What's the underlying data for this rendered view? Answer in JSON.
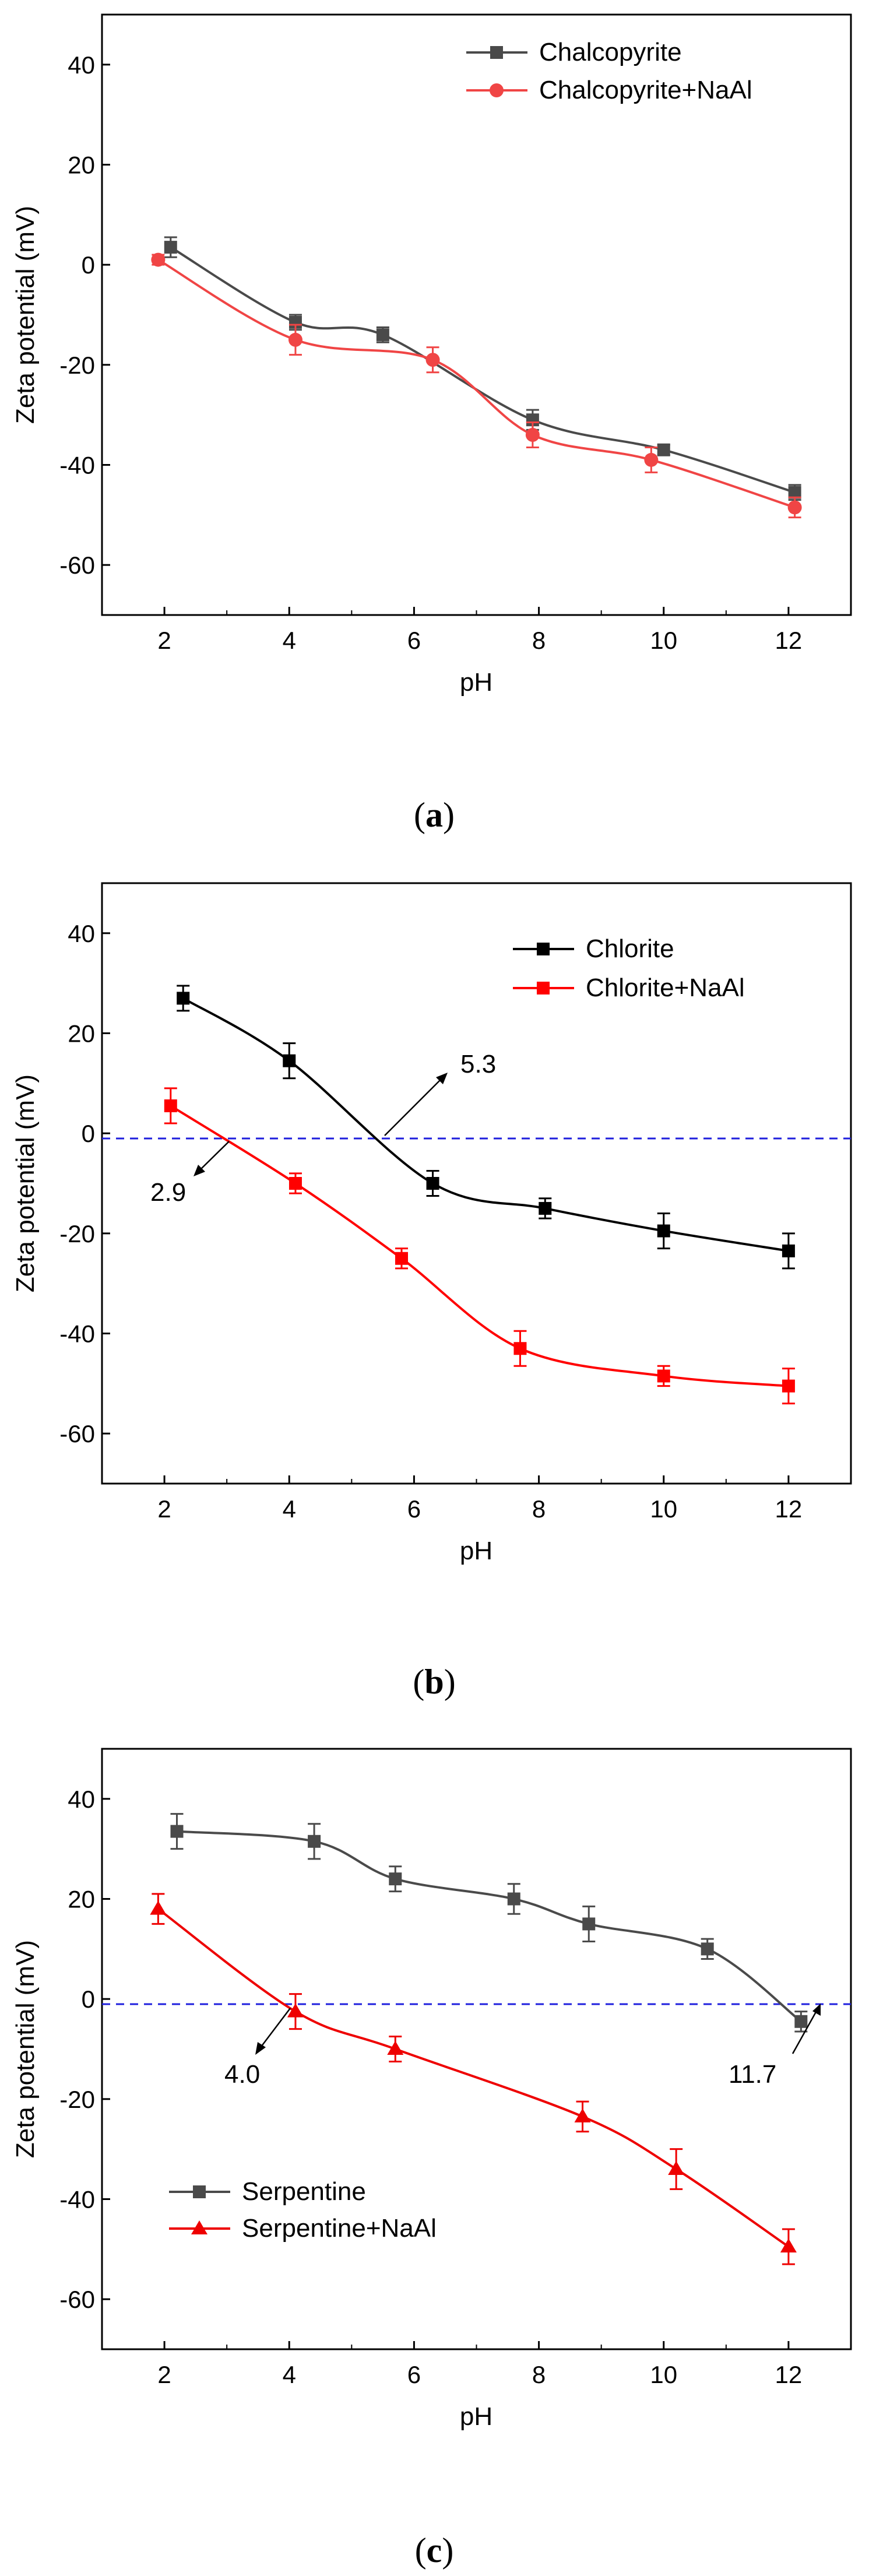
{
  "chart_data": [
    {
      "type": "line",
      "panel_label": "a",
      "xlabel": "pH",
      "ylabel": "Zeta potential (mV)",
      "xlim": [
        1,
        13
      ],
      "ylim": [
        -70,
        50
      ],
      "xticks": [
        "2",
        "4",
        "6",
        "8",
        "10",
        "12"
      ],
      "yticks": [
        "40",
        "20",
        "0",
        "-20",
        "-40",
        "-60"
      ],
      "legend_position": "top-right",
      "series": [
        {
          "name": "Chalcopyrite",
          "color": "#4a4a4a",
          "marker": "square",
          "x": [
            2.1,
            4.1,
            5.5,
            7.9,
            10.0,
            12.1
          ],
          "y": [
            3.5,
            -11.5,
            -14.0,
            -31.0,
            -37.0,
            -45.5
          ],
          "err": [
            2.0,
            1.5,
            1.5,
            2.0,
            1.0,
            1.5
          ]
        },
        {
          "name": "Chalcopyrite+NaAl",
          "color": "#f04545",
          "marker": "circle",
          "x": [
            1.9,
            4.1,
            6.3,
            7.9,
            9.8,
            12.1
          ],
          "y": [
            1.0,
            -15.0,
            -19.0,
            -34.0,
            -39.0,
            -48.5
          ],
          "err": [
            1.0,
            3.0,
            2.5,
            2.5,
            2.5,
            2.0
          ]
        }
      ]
    },
    {
      "type": "line",
      "panel_label": "b",
      "xlabel": "pH",
      "ylabel": "Zeta potential (mV)",
      "xlim": [
        1,
        13
      ],
      "ylim": [
        -70,
        50
      ],
      "xticks": [
        "2",
        "4",
        "6",
        "8",
        "10",
        "12"
      ],
      "yticks": [
        "40",
        "20",
        "0",
        "-20",
        "-40",
        "-60"
      ],
      "legend_position": "top-right",
      "reference_line": 0,
      "series": [
        {
          "name": "Chlorite",
          "color": "#000000",
          "marker": "square",
          "x": [
            2.3,
            4.0,
            6.3,
            8.1,
            10.0,
            12.0
          ],
          "y": [
            27.0,
            14.5,
            -10.0,
            -15.0,
            -19.5,
            -23.5
          ],
          "err": [
            2.5,
            3.5,
            2.5,
            2.0,
            3.5,
            3.5
          ]
        },
        {
          "name": "Chlorite+NaAl",
          "color": "#ff0000",
          "marker": "square",
          "x": [
            2.1,
            4.1,
            5.8,
            7.7,
            10.0,
            12.0
          ],
          "y": [
            5.5,
            -10.0,
            -25.0,
            -43.0,
            -48.5,
            -50.5
          ],
          "err": [
            3.5,
            2.0,
            2.0,
            3.5,
            2.0,
            3.5
          ]
        }
      ],
      "annotations": [
        {
          "text": "5.3",
          "x": 5.3
        },
        {
          "text": "2.9",
          "x": 2.9
        }
      ]
    },
    {
      "type": "line",
      "panel_label": "c",
      "xlabel": "pH",
      "ylabel": "Zeta potential (mV)",
      "xlim": [
        1,
        13
      ],
      "ylim": [
        -70,
        50
      ],
      "xticks": [
        "2",
        "4",
        "6",
        "8",
        "10",
        "12"
      ],
      "yticks": [
        "40",
        "20",
        "0",
        "-20",
        "-40",
        "-60"
      ],
      "legend_position": "bottom-left",
      "reference_line": 0,
      "series": [
        {
          "name": "Serpentine",
          "color": "#4a4a4a",
          "marker": "square",
          "x": [
            2.2,
            4.4,
            5.7,
            7.6,
            8.8,
            10.7,
            12.2
          ],
          "y": [
            33.5,
            31.5,
            24.0,
            20.0,
            15.0,
            10.0,
            -4.5
          ],
          "err": [
            3.5,
            3.5,
            2.5,
            3.0,
            3.5,
            2.0,
            2.0
          ]
        },
        {
          "name": "Serpentine+NaAl",
          "color": "#ee0000",
          "marker": "triangle",
          "x": [
            1.9,
            4.1,
            5.7,
            8.7,
            10.2,
            12.0
          ],
          "y": [
            18.0,
            -2.5,
            -10.0,
            -23.5,
            -34.0,
            -49.5
          ],
          "err": [
            3.0,
            3.5,
            2.5,
            3.0,
            4.0,
            3.5
          ]
        }
      ],
      "annotations": [
        {
          "text": "4.0",
          "x": 4.0
        },
        {
          "text": "11.7",
          "x": 11.7
        }
      ]
    }
  ]
}
